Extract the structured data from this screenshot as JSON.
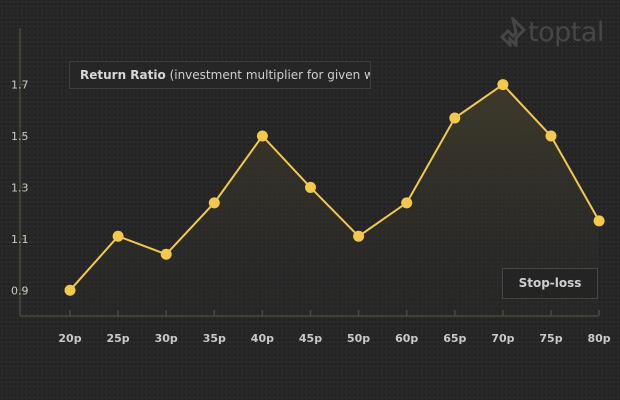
{
  "brand": {
    "name": "toptal",
    "icon": "toptal-logo-icon"
  },
  "title": {
    "bold": "Return Ratio",
    "rest": "(investment multiplier for given window)"
  },
  "legend_box": {
    "label": "Stop-loss"
  },
  "colors": {
    "background": "#262626",
    "series": "#f2c94c",
    "axis": "#4b4a33",
    "text": "#c9c9c9"
  },
  "chart_data": {
    "type": "line",
    "title": "Return Ratio (investment multiplier for given window)",
    "xlabel": "",
    "ylabel": "",
    "categories": [
      "20p",
      "25p",
      "30p",
      "35p",
      "40p",
      "45p",
      "50p",
      "60p",
      "65p",
      "70p",
      "75p",
      "80p"
    ],
    "series": [
      {
        "values": [
          0.9,
          1.11,
          1.04,
          1.24,
          1.5,
          1.3,
          1.11,
          1.24,
          1.57,
          1.7,
          1.5,
          1.17
        ]
      }
    ],
    "yticks": [
      "0.9",
      "1.1",
      "1.3",
      "1.5",
      "1.7"
    ],
    "ylim": [
      0.8,
      1.92
    ],
    "grid": false,
    "area_fill": true
  }
}
